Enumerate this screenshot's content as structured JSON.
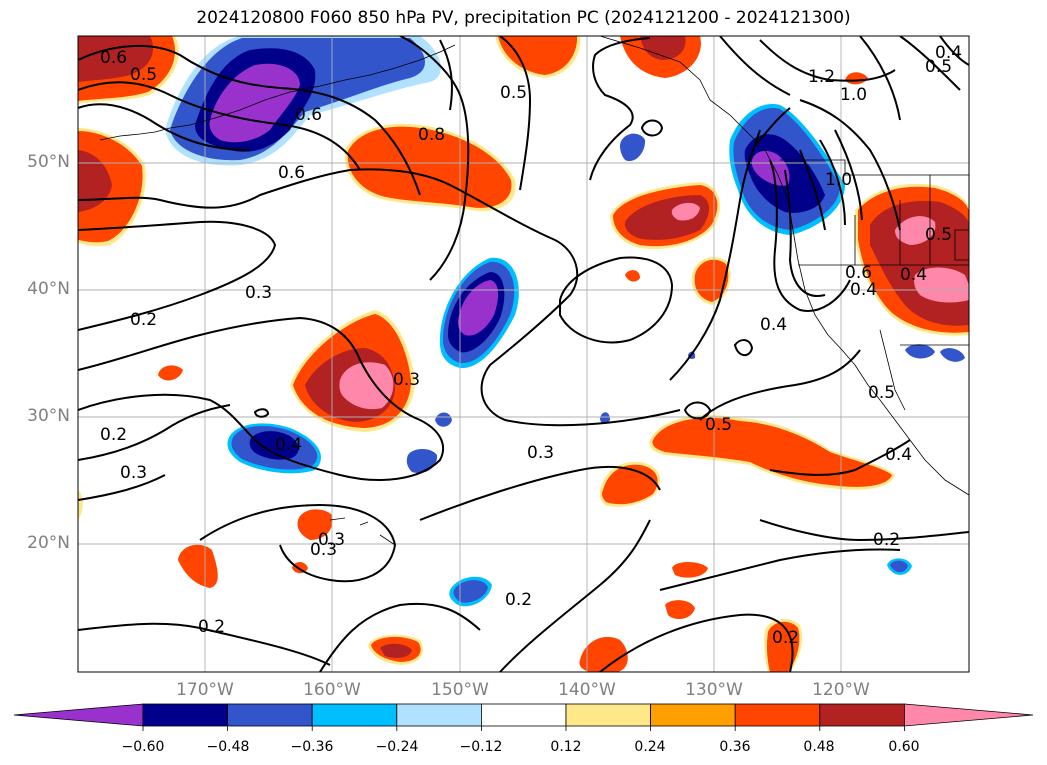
{
  "title": "2024120800 F060 850 hPa PV, precipitation PC (2024121200 - 2024121300)",
  "map": {
    "lat_ticks": [
      "50°N",
      "40°N",
      "30°N",
      "20°N"
    ],
    "lon_ticks": [
      "170°W",
      "160°W",
      "150°W",
      "140°W",
      "130°W",
      "120°W"
    ],
    "contour_labels": [
      "0.6",
      "0.5",
      "0.6",
      "0.8",
      "0.5",
      "0.6",
      "0.3",
      "0.2",
      "0.3",
      "0.2",
      "0.3",
      "0.4",
      "0.3",
      "0.3",
      "0.2",
      "0.2",
      "0.5",
      "0.4",
      "0.2",
      "1.2",
      "1.0",
      "1.0",
      "0.5",
      "0.4",
      "0.6",
      "0.4",
      "0.5",
      "0.4",
      "0.5",
      "0.4",
      "0.3",
      "0.2"
    ]
  },
  "colorbar": {
    "ticks": [
      "−0.60",
      "−0.48",
      "−0.36",
      "−0.24",
      "−0.12",
      "0.12",
      "0.24",
      "0.36",
      "0.48",
      "0.60"
    ],
    "colors": [
      "#9932cc",
      "#00008b",
      "#3355cc",
      "#00bfff",
      "#b0e2ff",
      "#ffffff",
      "#ffe88a",
      "#ff9f00",
      "#ff4500",
      "#b22222",
      "#ff88aa"
    ]
  }
}
